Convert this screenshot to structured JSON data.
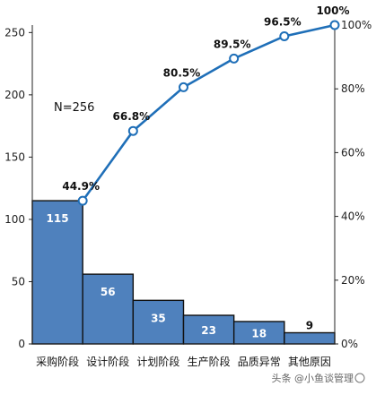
{
  "chart_data": {
    "type": "bar",
    "categories": [
      "采购阶段",
      "设计阶段",
      "计划阶段",
      "生产阶段",
      "品质异常",
      "其他原因"
    ],
    "values": [
      115,
      56,
      35,
      23,
      18,
      9
    ],
    "cumulative_percent": [
      44.9,
      66.8,
      80.5,
      89.5,
      96.5,
      100
    ],
    "cumulative_labels": [
      "44.9%",
      "66.8%",
      "80.5%",
      "89.5%",
      "96.5%",
      "100%"
    ],
    "annotation": "N=256",
    "ylim": [
      0,
      256
    ],
    "y_ticks": [
      0,
      50,
      100,
      150,
      200,
      250
    ],
    "y2lim": [
      0,
      100
    ],
    "y2_ticks": [
      "0%",
      "20%",
      "40%",
      "60%",
      "80%",
      "100%"
    ],
    "grid": false,
    "colors": {
      "bar": "#4f81bd",
      "line": "#1f6fb8",
      "bar_edge": "#111111"
    }
  },
  "watermark": "头条 @小鱼谈管理"
}
